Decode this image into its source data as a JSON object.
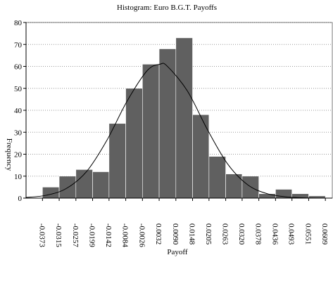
{
  "chart_data": {
    "type": "histogram",
    "title": "Histogram: Euro B.G.T. Payoffs",
    "xlabel": "Payoff",
    "ylabel": "Frequency",
    "bins": [
      -0.0373,
      -0.0315,
      -0.0257,
      -0.0199,
      -0.0142,
      -0.0084,
      -0.0026,
      0.0032,
      0.009,
      0.0148,
      0.0205,
      0.0263,
      0.032,
      0.0378,
      0.0436,
      0.0493,
      0.0551,
      0.0609
    ],
    "values": [
      5,
      10,
      13,
      12,
      34,
      50,
      61,
      68,
      73,
      38,
      19,
      11,
      10,
      2,
      4,
      2,
      1
    ],
    "color": "#606060",
    "curve": {
      "x": [
        -0.043,
        -0.036,
        -0.029,
        -0.022,
        -0.015,
        -0.008,
        -0.001,
        0.0035,
        0.006,
        0.013,
        0.02,
        0.027,
        0.034,
        0.041,
        0.048,
        0.055,
        0.063
      ],
      "values": [
        0.3,
        1.3,
        4.4,
        12.1,
        26.2,
        44.0,
        58.0,
        61.0,
        60.1,
        48.8,
        31.1,
        15.5,
        6.0,
        1.9,
        0.5,
        0.1,
        0.0
      ],
      "color": "#000000"
    },
    "xlim": [
      -0.043,
      0.0633
    ],
    "ylim": [
      0,
      80
    ],
    "yticks": [
      0,
      10,
      20,
      30,
      40,
      50,
      60,
      70,
      80
    ],
    "xticks": [
      {
        "value": -0.0373,
        "label": "-0.0373"
      },
      {
        "value": -0.0315,
        "label": "-0.0315"
      },
      {
        "value": -0.0257,
        "label": "-0.0257"
      },
      {
        "value": -0.0199,
        "label": "-0.0199"
      },
      {
        "value": -0.0142,
        "label": "-0.0142"
      },
      {
        "value": -0.0084,
        "label": "-0.0084"
      },
      {
        "value": -0.0026,
        "label": "-0.0026"
      },
      {
        "value": 0.0032,
        "label": "0.0032"
      },
      {
        "value": 0.009,
        "label": "0.0090"
      },
      {
        "value": 0.0148,
        "label": "0.0148"
      },
      {
        "value": 0.0205,
        "label": "0.0205"
      },
      {
        "value": 0.0263,
        "label": "0.0263"
      },
      {
        "value": 0.032,
        "label": "0.0320"
      },
      {
        "value": 0.0378,
        "label": "0.0378"
      },
      {
        "value": 0.0436,
        "label": "0.0436"
      },
      {
        "value": 0.0493,
        "label": "0.0493"
      },
      {
        "value": 0.0551,
        "label": "0.0551"
      },
      {
        "value": 0.0609,
        "label": "0.0609"
      }
    ],
    "grid": true
  }
}
